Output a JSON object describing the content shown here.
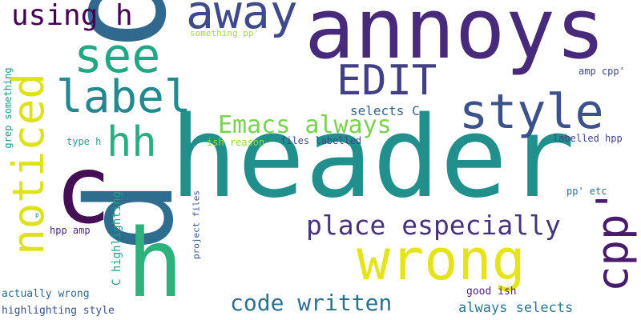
{
  "background": "#ffffff",
  "words": [
    {
      "id": "annoys",
      "text": "annoys",
      "color": "#472a7a"
    },
    {
      "id": "header",
      "text": "header",
      "color": "#21908d"
    },
    {
      "id": "p-big",
      "text": "p",
      "color": "#31688e"
    },
    {
      "id": "p-mid",
      "text": "p",
      "color": "#2e6d8e"
    },
    {
      "id": "c",
      "text": "c",
      "color": "#440f55"
    },
    {
      "id": "h",
      "text": "h",
      "color": "#2db27d"
    },
    {
      "id": "wrong",
      "text": "wrong",
      "color": "#e5e419"
    },
    {
      "id": "away",
      "text": "away",
      "color": "#3e4a89"
    },
    {
      "id": "see",
      "text": "see",
      "color": "#22a784"
    },
    {
      "id": "style",
      "text": "style",
      "color": "#3b518b"
    },
    {
      "id": "label",
      "text": "label",
      "color": "#23898e"
    },
    {
      "id": "edit",
      "text": "EDIT",
      "color": "#423f85"
    },
    {
      "id": "hh",
      "text": "hh",
      "color": "#29af7f"
    },
    {
      "id": "noticed",
      "text": "noticed",
      "color": "#dde318"
    },
    {
      "id": "cpp",
      "text": "cpp'",
      "color": "#481b6d"
    },
    {
      "id": "using-h",
      "text": "using h",
      "color": "#440154"
    },
    {
      "id": "emacs-always",
      "text": "Emacs always",
      "color": "#7ad151"
    },
    {
      "id": "place-especially",
      "text": "place especially",
      "color": "#46337e"
    },
    {
      "id": "code-written",
      "text": "code written",
      "color": "#2c728e"
    },
    {
      "id": "selects-c",
      "text": "selects C",
      "color": "#33638d"
    },
    {
      "id": "always-selects",
      "text": "always selects",
      "color": "#2a788e"
    },
    {
      "id": "something-pp",
      "text": "something pp'",
      "color": "#a5db36"
    },
    {
      "id": "amp-cpp",
      "text": "amp cpp'",
      "color": "#414487"
    },
    {
      "id": "files-labelled",
      "text": "files labelled",
      "color": "#3f4889"
    },
    {
      "id": "ish-reason",
      "text": "ish reason",
      "color": "#95d840"
    },
    {
      "id": "labelled-hpp",
      "text": "labelled hpp",
      "color": "#414487"
    },
    {
      "id": "type-h",
      "text": "type h",
      "color": "#20a486"
    },
    {
      "id": "grep-something",
      "text": "grep something",
      "color": "#1f988b"
    },
    {
      "id": "c-highlighting",
      "text": "C highlighting",
      "color": "#1fa088"
    },
    {
      "id": "hpp-amp",
      "text": "hpp amp",
      "color": "#482878"
    },
    {
      "id": "project-files",
      "text": "project files",
      "color": "#3a538b"
    },
    {
      "id": "pp-etc",
      "text": "pp' etc",
      "color": "#2c728e"
    },
    {
      "id": "good-ish",
      "text": "good ish",
      "color": "#482475"
    },
    {
      "id": "actually-wrong",
      "text": "actually wrong",
      "color": "#31688e"
    },
    {
      "id": "highlighting-style",
      "text": "highlighting style",
      "color": "#3b518b"
    },
    {
      "id": "p-tiny",
      "text": "p",
      "color": "#277f8e"
    }
  ]
}
